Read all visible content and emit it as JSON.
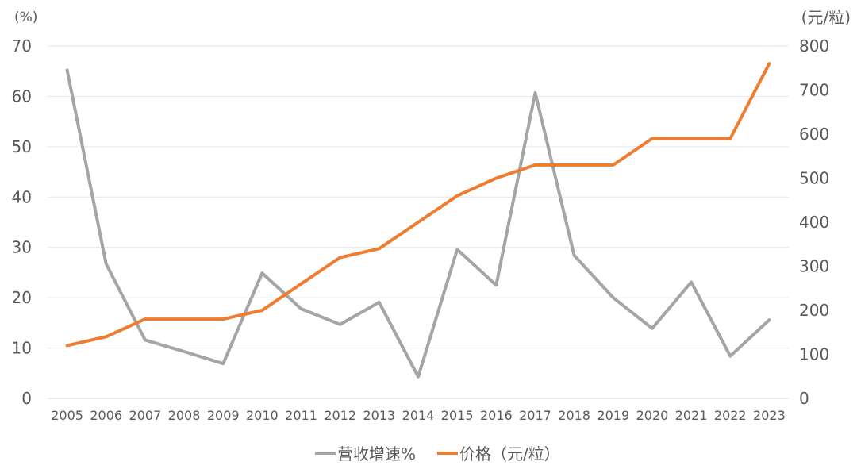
{
  "chart_data": {
    "type": "line",
    "left_unit": "(%)",
    "right_unit": "(元/粒)",
    "categories": [
      "2005",
      "2006",
      "2007",
      "2008",
      "2009",
      "2010",
      "2011",
      "2012",
      "2013",
      "2014",
      "2015",
      "2016",
      "2017",
      "2018",
      "2019",
      "2020",
      "2021",
      "2022",
      "2023"
    ],
    "left_axis": {
      "ylim": [
        0,
        70
      ],
      "ticks": [
        0,
        10,
        20,
        30,
        40,
        50,
        60,
        70
      ]
    },
    "right_axis": {
      "ylim": [
        0,
        800
      ],
      "ticks": [
        0,
        100,
        200,
        300,
        400,
        500,
        600,
        700,
        800
      ]
    },
    "grid": true,
    "legend_position": "bottom",
    "series": [
      {
        "name": "营收增速%",
        "axis": "left",
        "color": "#a5a5a5",
        "values": [
          65.2,
          26.7,
          11.6,
          9.3,
          6.9,
          24.9,
          17.8,
          14.7,
          19.1,
          4.3,
          29.6,
          22.5,
          60.7,
          28.4,
          20.0,
          13.9,
          23.1,
          8.4,
          15.6
        ]
      },
      {
        "name": "价格（元/粒）",
        "axis": "right",
        "color": "#ed7d31",
        "values": [
          120,
          140,
          180,
          180,
          180,
          200,
          260,
          320,
          340,
          400,
          460,
          500,
          530,
          530,
          530,
          590,
          590,
          590,
          760
        ]
      }
    ]
  }
}
